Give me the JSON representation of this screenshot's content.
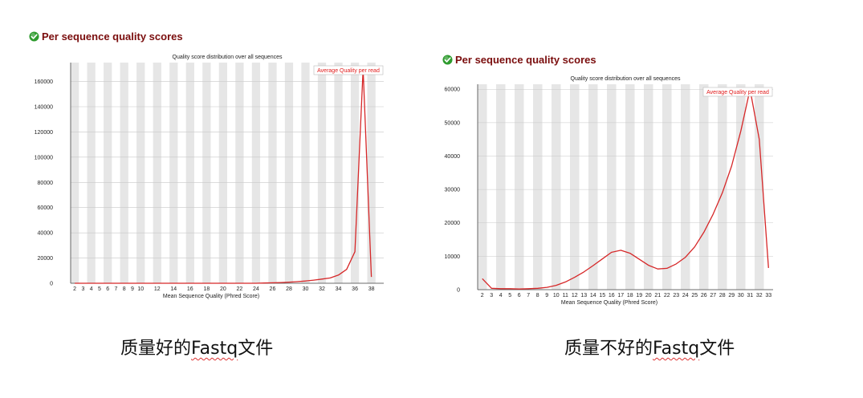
{
  "panels": [
    {
      "heading": "Per sequence quality scores",
      "status_icon": "check-circle-icon",
      "caption_pre": "质量好的",
      "caption_mid": "Fastq",
      "caption_post": "文件"
    },
    {
      "heading": "Per sequence quality scores",
      "status_icon": "check-circle-icon",
      "caption_pre": "质量不好的",
      "caption_mid": "Fastq",
      "caption_post": "文件"
    }
  ],
  "colors": {
    "line": "#d62728",
    "stripe": "#e6e6e6",
    "heading": "#7a0d0d",
    "icon": "#2e9b2e",
    "legend_text": "#e11b1b"
  },
  "chart_data": [
    {
      "type": "line",
      "title": "Quality score distribution over all sequences",
      "xlabel": "Mean Sequence Quality (Phred Score)",
      "ylabel": "",
      "legend": "Average Quality per read",
      "legend_position": "top-right",
      "grid": "alternating vertical stripes",
      "x": [
        2,
        3,
        4,
        5,
        6,
        7,
        8,
        9,
        10,
        11,
        12,
        13,
        14,
        15,
        16,
        17,
        18,
        19,
        20,
        21,
        22,
        23,
        24,
        25,
        26,
        27,
        28,
        29,
        30,
        31,
        32,
        33,
        34,
        35,
        36,
        37,
        38
      ],
      "x_tick_labels": [
        "2",
        "3",
        "4",
        "5",
        "6",
        "7",
        "8",
        "9",
        "10",
        "12",
        "14",
        "16",
        "18",
        "20",
        "22",
        "24",
        "26",
        "28",
        "30",
        "32",
        "34",
        "36",
        "38"
      ],
      "x_tick_values": [
        2,
        3,
        4,
        5,
        6,
        7,
        8,
        9,
        10,
        12,
        14,
        16,
        18,
        20,
        22,
        24,
        26,
        28,
        30,
        32,
        34,
        36,
        38
      ],
      "series": [
        {
          "values": [
            0,
            0,
            0,
            0,
            0,
            0,
            0,
            0,
            0,
            0,
            0,
            0,
            0,
            0,
            0,
            0,
            0,
            0,
            0,
            0,
            0,
            0,
            0,
            200,
            400,
            600,
            900,
            1300,
            1800,
            2500,
            3300,
            4200,
            6500,
            11000,
            25000,
            170000,
            5000
          ]
        }
      ],
      "y_ticks": [
        0,
        20000,
        40000,
        60000,
        80000,
        100000,
        120000,
        140000,
        160000
      ],
      "ylim": [
        0,
        175000
      ],
      "xlim": [
        1.5,
        39.5
      ]
    },
    {
      "type": "line",
      "title": "Quality score distribution over all sequences",
      "xlabel": "Mean Sequence Quality (Phred Score)",
      "ylabel": "",
      "legend": "Average Quality per read",
      "legend_position": "top-right",
      "grid": "alternating vertical stripes",
      "x": [
        2,
        3,
        4,
        5,
        6,
        7,
        8,
        9,
        10,
        11,
        12,
        13,
        14,
        15,
        16,
        17,
        18,
        19,
        20,
        21,
        22,
        23,
        24,
        25,
        26,
        27,
        28,
        29,
        30,
        31,
        32,
        33
      ],
      "x_tick_labels": [
        "2",
        "3",
        "4",
        "5",
        "6",
        "7",
        "8",
        "9",
        "10",
        "11",
        "12",
        "13",
        "14",
        "15",
        "16",
        "17",
        "18",
        "19",
        "20",
        "21",
        "22",
        "23",
        "24",
        "25",
        "26",
        "27",
        "28",
        "29",
        "30",
        "31",
        "32",
        "33"
      ],
      "x_tick_values": [
        2,
        3,
        4,
        5,
        6,
        7,
        8,
        9,
        10,
        11,
        12,
        13,
        14,
        15,
        16,
        17,
        18,
        19,
        20,
        21,
        22,
        23,
        24,
        25,
        26,
        27,
        28,
        29,
        30,
        31,
        32,
        33
      ],
      "series": [
        {
          "values": [
            3300,
            400,
            300,
            300,
            200,
            300,
            400,
            700,
            1300,
            2300,
            3700,
            5300,
            7200,
            9200,
            11200,
            11800,
            10900,
            9100,
            7300,
            6200,
            6400,
            7700,
            9700,
            12800,
            17200,
            22600,
            29000,
            37000,
            47500,
            60000,
            45000,
            6500
          ]
        }
      ],
      "y_ticks": [
        0,
        10000,
        20000,
        30000,
        40000,
        50000,
        60000
      ],
      "ylim": [
        0,
        61500
      ],
      "xlim": [
        1.5,
        33.5
      ]
    }
  ]
}
